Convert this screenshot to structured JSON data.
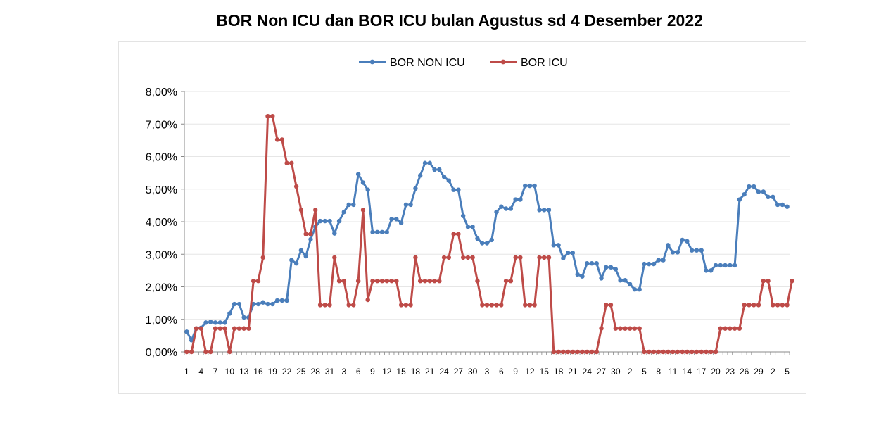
{
  "chart_data": {
    "type": "line",
    "title": "BOR Non ICU dan BOR ICU bulan Agustus sd 4 Desember 2022",
    "xlabel": "",
    "ylabel": "",
    "ylim": [
      0,
      8
    ],
    "y_tick_labels": [
      "0,00%",
      "1,00%",
      "2,00%",
      "3,00%",
      "4,00%",
      "5,00%",
      "6,00%",
      "7,00%",
      "8,00%"
    ],
    "x_tick_labels": [
      "1",
      "4",
      "7",
      "10",
      "13",
      "16",
      "19",
      "22",
      "25",
      "28",
      "31",
      "3",
      "6",
      "9",
      "12",
      "15",
      "18",
      "21",
      "24",
      "27",
      "30",
      "3",
      "6",
      "9",
      "12",
      "15",
      "18",
      "21",
      "24",
      "27",
      "30",
      "2",
      "5",
      "8",
      "11",
      "14",
      "17",
      "20",
      "23",
      "26",
      "29",
      "2",
      "5"
    ],
    "grid": true,
    "legend": "top-center",
    "series": [
      {
        "name": "BOR NON ICU",
        "color": "#4a7ebb",
        "values": [
          0.62,
          0.36,
          0.72,
          0.74,
          0.9,
          0.92,
          0.9,
          0.9,
          0.9,
          1.18,
          1.47,
          1.47,
          1.06,
          1.06,
          1.47,
          1.47,
          1.52,
          1.47,
          1.47,
          1.58,
          1.58,
          1.58,
          2.82,
          2.72,
          3.12,
          2.94,
          3.46,
          3.84,
          4.02,
          4.02,
          4.02,
          3.64,
          4.02,
          4.3,
          4.52,
          4.52,
          5.46,
          5.2,
          4.98,
          3.68,
          3.68,
          3.68,
          3.68,
          4.08,
          4.08,
          3.96,
          4.52,
          4.52,
          5.02,
          5.42,
          5.8,
          5.8,
          5.6,
          5.6,
          5.38,
          5.26,
          4.98,
          4.98,
          4.18,
          3.84,
          3.84,
          3.48,
          3.34,
          3.34,
          3.44,
          4.3,
          4.46,
          4.4,
          4.4,
          4.68,
          4.68,
          5.1,
          5.1,
          5.1,
          4.36,
          4.36,
          4.36,
          3.28,
          3.28,
          2.88,
          3.04,
          3.04,
          2.38,
          2.32,
          2.72,
          2.72,
          2.72,
          2.26,
          2.6,
          2.6,
          2.54,
          2.2,
          2.2,
          2.08,
          1.92,
          1.92,
          2.7,
          2.7,
          2.7,
          2.82,
          2.82,
          3.28,
          3.06,
          3.06,
          3.44,
          3.4,
          3.12,
          3.12,
          3.12,
          2.5,
          2.5,
          2.66,
          2.66,
          2.66,
          2.66,
          2.66,
          4.68,
          4.84,
          5.08,
          5.08,
          4.92,
          4.92,
          4.76,
          4.76,
          4.52,
          4.52,
          4.46
        ]
      },
      {
        "name": "BOR ICU",
        "color": "#be4b48",
        "values": [
          0,
          0,
          0.72,
          0.72,
          0,
          0,
          0.72,
          0.72,
          0.72,
          0,
          0.72,
          0.72,
          0.72,
          0.72,
          2.18,
          2.18,
          2.9,
          7.24,
          7.24,
          6.52,
          6.52,
          5.8,
          5.8,
          5.08,
          4.36,
          3.62,
          3.62,
          4.36,
          1.44,
          1.44,
          1.44,
          2.9,
          2.18,
          2.18,
          1.44,
          1.44,
          2.18,
          4.36,
          1.6,
          2.18,
          2.18,
          2.18,
          2.18,
          2.18,
          2.18,
          1.44,
          1.44,
          1.44,
          2.9,
          2.18,
          2.18,
          2.18,
          2.18,
          2.18,
          2.9,
          2.9,
          3.62,
          3.62,
          2.9,
          2.9,
          2.9,
          2.18,
          1.44,
          1.44,
          1.44,
          1.44,
          1.44,
          2.18,
          2.18,
          2.9,
          2.9,
          1.44,
          1.44,
          1.44,
          2.9,
          2.9,
          2.9,
          0,
          0,
          0,
          0,
          0,
          0,
          0,
          0,
          0,
          0,
          0.72,
          1.44,
          1.44,
          0.72,
          0.72,
          0.72,
          0.72,
          0.72,
          0.72,
          0,
          0,
          0,
          0,
          0,
          0,
          0,
          0,
          0,
          0,
          0,
          0,
          0,
          0,
          0,
          0,
          0.72,
          0.72,
          0.72,
          0.72,
          0.72,
          1.44,
          1.44,
          1.44,
          1.44,
          2.18,
          2.18,
          1.44,
          1.44,
          1.44,
          1.44,
          2.18
        ]
      }
    ]
  }
}
